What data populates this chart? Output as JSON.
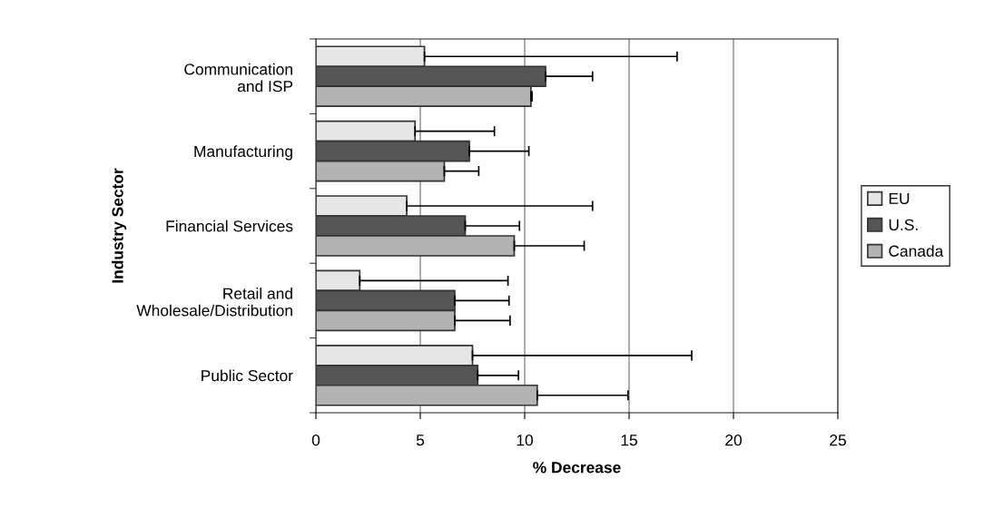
{
  "chart_data": {
    "type": "bar",
    "orientation": "horizontal",
    "xlabel": "% Decrease",
    "ylabel": "Industry Sector",
    "categories": [
      "Communication\nand ISP",
      "Manufacturing",
      "Financial Services",
      "Retail and\nWholesale/Distribution",
      "Public Sector"
    ],
    "series": [
      {
        "name": "EU",
        "color": "#e6e6e6",
        "values": [
          5.2,
          4.75,
          4.35,
          2.1,
          7.5
        ],
        "errors": [
          [
            5.2,
            17.3
          ],
          [
            4.75,
            8.55
          ],
          [
            4.35,
            13.25
          ],
          [
            2.1,
            9.2
          ],
          [
            7.5,
            18.0
          ]
        ]
      },
      {
        "name": "U.S.",
        "color": "#555555",
        "values": [
          11.0,
          7.35,
          7.15,
          6.65,
          7.75
        ],
        "errors": [
          [
            11.0,
            13.25
          ],
          [
            7.35,
            10.2
          ],
          [
            7.15,
            9.75
          ],
          [
            6.65,
            9.25
          ],
          [
            7.75,
            9.7
          ]
        ]
      },
      {
        "name": "Canada",
        "color": "#b3b3b3",
        "values": [
          10.3,
          6.15,
          9.5,
          6.65,
          10.6
        ],
        "errors": [
          [
            10.3,
            10.35
          ],
          [
            6.15,
            7.8
          ],
          [
            9.5,
            12.85
          ],
          [
            6.65,
            9.3
          ],
          [
            10.6,
            14.95
          ]
        ]
      }
    ],
    "xlim": [
      0,
      25
    ],
    "xticks": [
      0,
      5,
      10,
      15,
      20,
      25
    ],
    "grid": "x",
    "legend": "right"
  }
}
